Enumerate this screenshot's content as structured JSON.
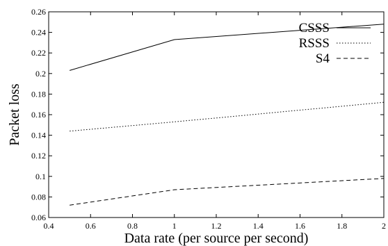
{
  "chart_data": {
    "type": "line",
    "title": "",
    "xlabel": "Data rate (per source per second)",
    "ylabel": "Packet loss",
    "xlim": [
      0.4,
      2
    ],
    "ylim": [
      0.06,
      0.26
    ],
    "xticks": [
      "0.4",
      "0.6",
      "0.8",
      "1",
      "1.2",
      "1.4",
      "1.6",
      "1.8",
      "2"
    ],
    "yticks": [
      "0.06",
      "0.08",
      "0.1",
      "0.12",
      "0.14",
      "0.16",
      "0.18",
      "0.2",
      "0.22",
      "0.24",
      "0.26"
    ],
    "grid": false,
    "legend_position": "top-right",
    "series": [
      {
        "name": "CSSS",
        "style": "solid",
        "x": [
          0.5,
          1,
          2
        ],
        "y": [
          0.203,
          0.233,
          0.248
        ]
      },
      {
        "name": "RSSS",
        "style": "dotted",
        "x": [
          0.5,
          1,
          2
        ],
        "y": [
          0.144,
          0.153,
          0.172
        ]
      },
      {
        "name": "S4",
        "style": "dashed",
        "x": [
          0.5,
          1,
          2
        ],
        "y": [
          0.072,
          0.087,
          0.098
        ]
      }
    ]
  }
}
